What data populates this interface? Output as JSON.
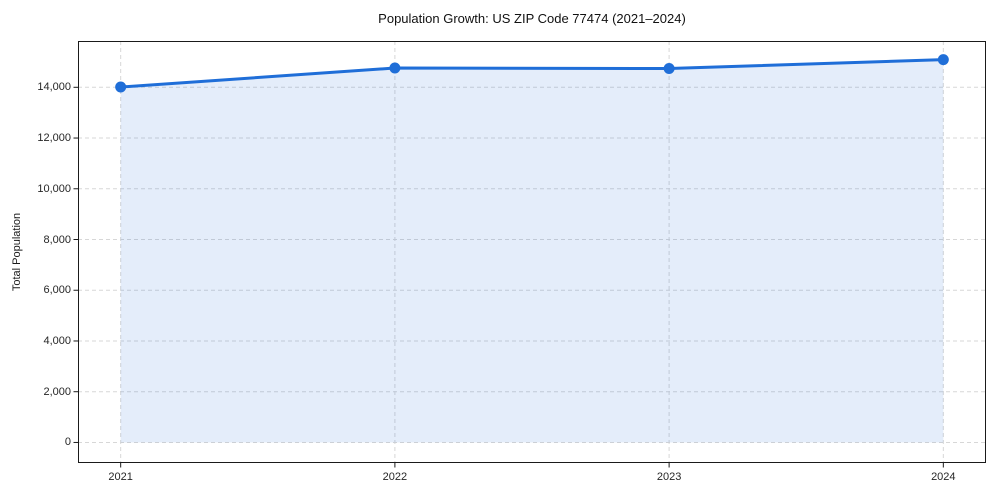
{
  "chart_data": {
    "type": "line",
    "title": "Population Growth: US ZIP Code 77474 (2021–2024)",
    "xlabel": "",
    "ylabel": "Total Population",
    "categories": [
      "2021",
      "2022",
      "2023",
      "2024"
    ],
    "series": [
      {
        "name": "Total Population",
        "values": [
          14010,
          14760,
          14740,
          15090
        ]
      }
    ],
    "yticks": {
      "values": [
        0,
        2000,
        4000,
        6000,
        8000,
        10000,
        12000,
        14000
      ],
      "labels": [
        "0",
        "2,000",
        "4,000",
        "6,000",
        "8,000",
        "10,000",
        "12,000",
        "14,000"
      ]
    },
    "ylim": [
      -810,
      15825
    ],
    "grid": true,
    "grid_style": "dashed",
    "legend": "none",
    "marker": "circle",
    "area_fill": true,
    "colors": {
      "line": "#1f6ed8",
      "marker": "#1f6ed8",
      "fill": "#1f6ed8",
      "fill_opacity": "0.12",
      "grid": "#d7d7d7",
      "spine": "#1a1a1a",
      "text": "#262626",
      "background": "#ffffff"
    }
  }
}
